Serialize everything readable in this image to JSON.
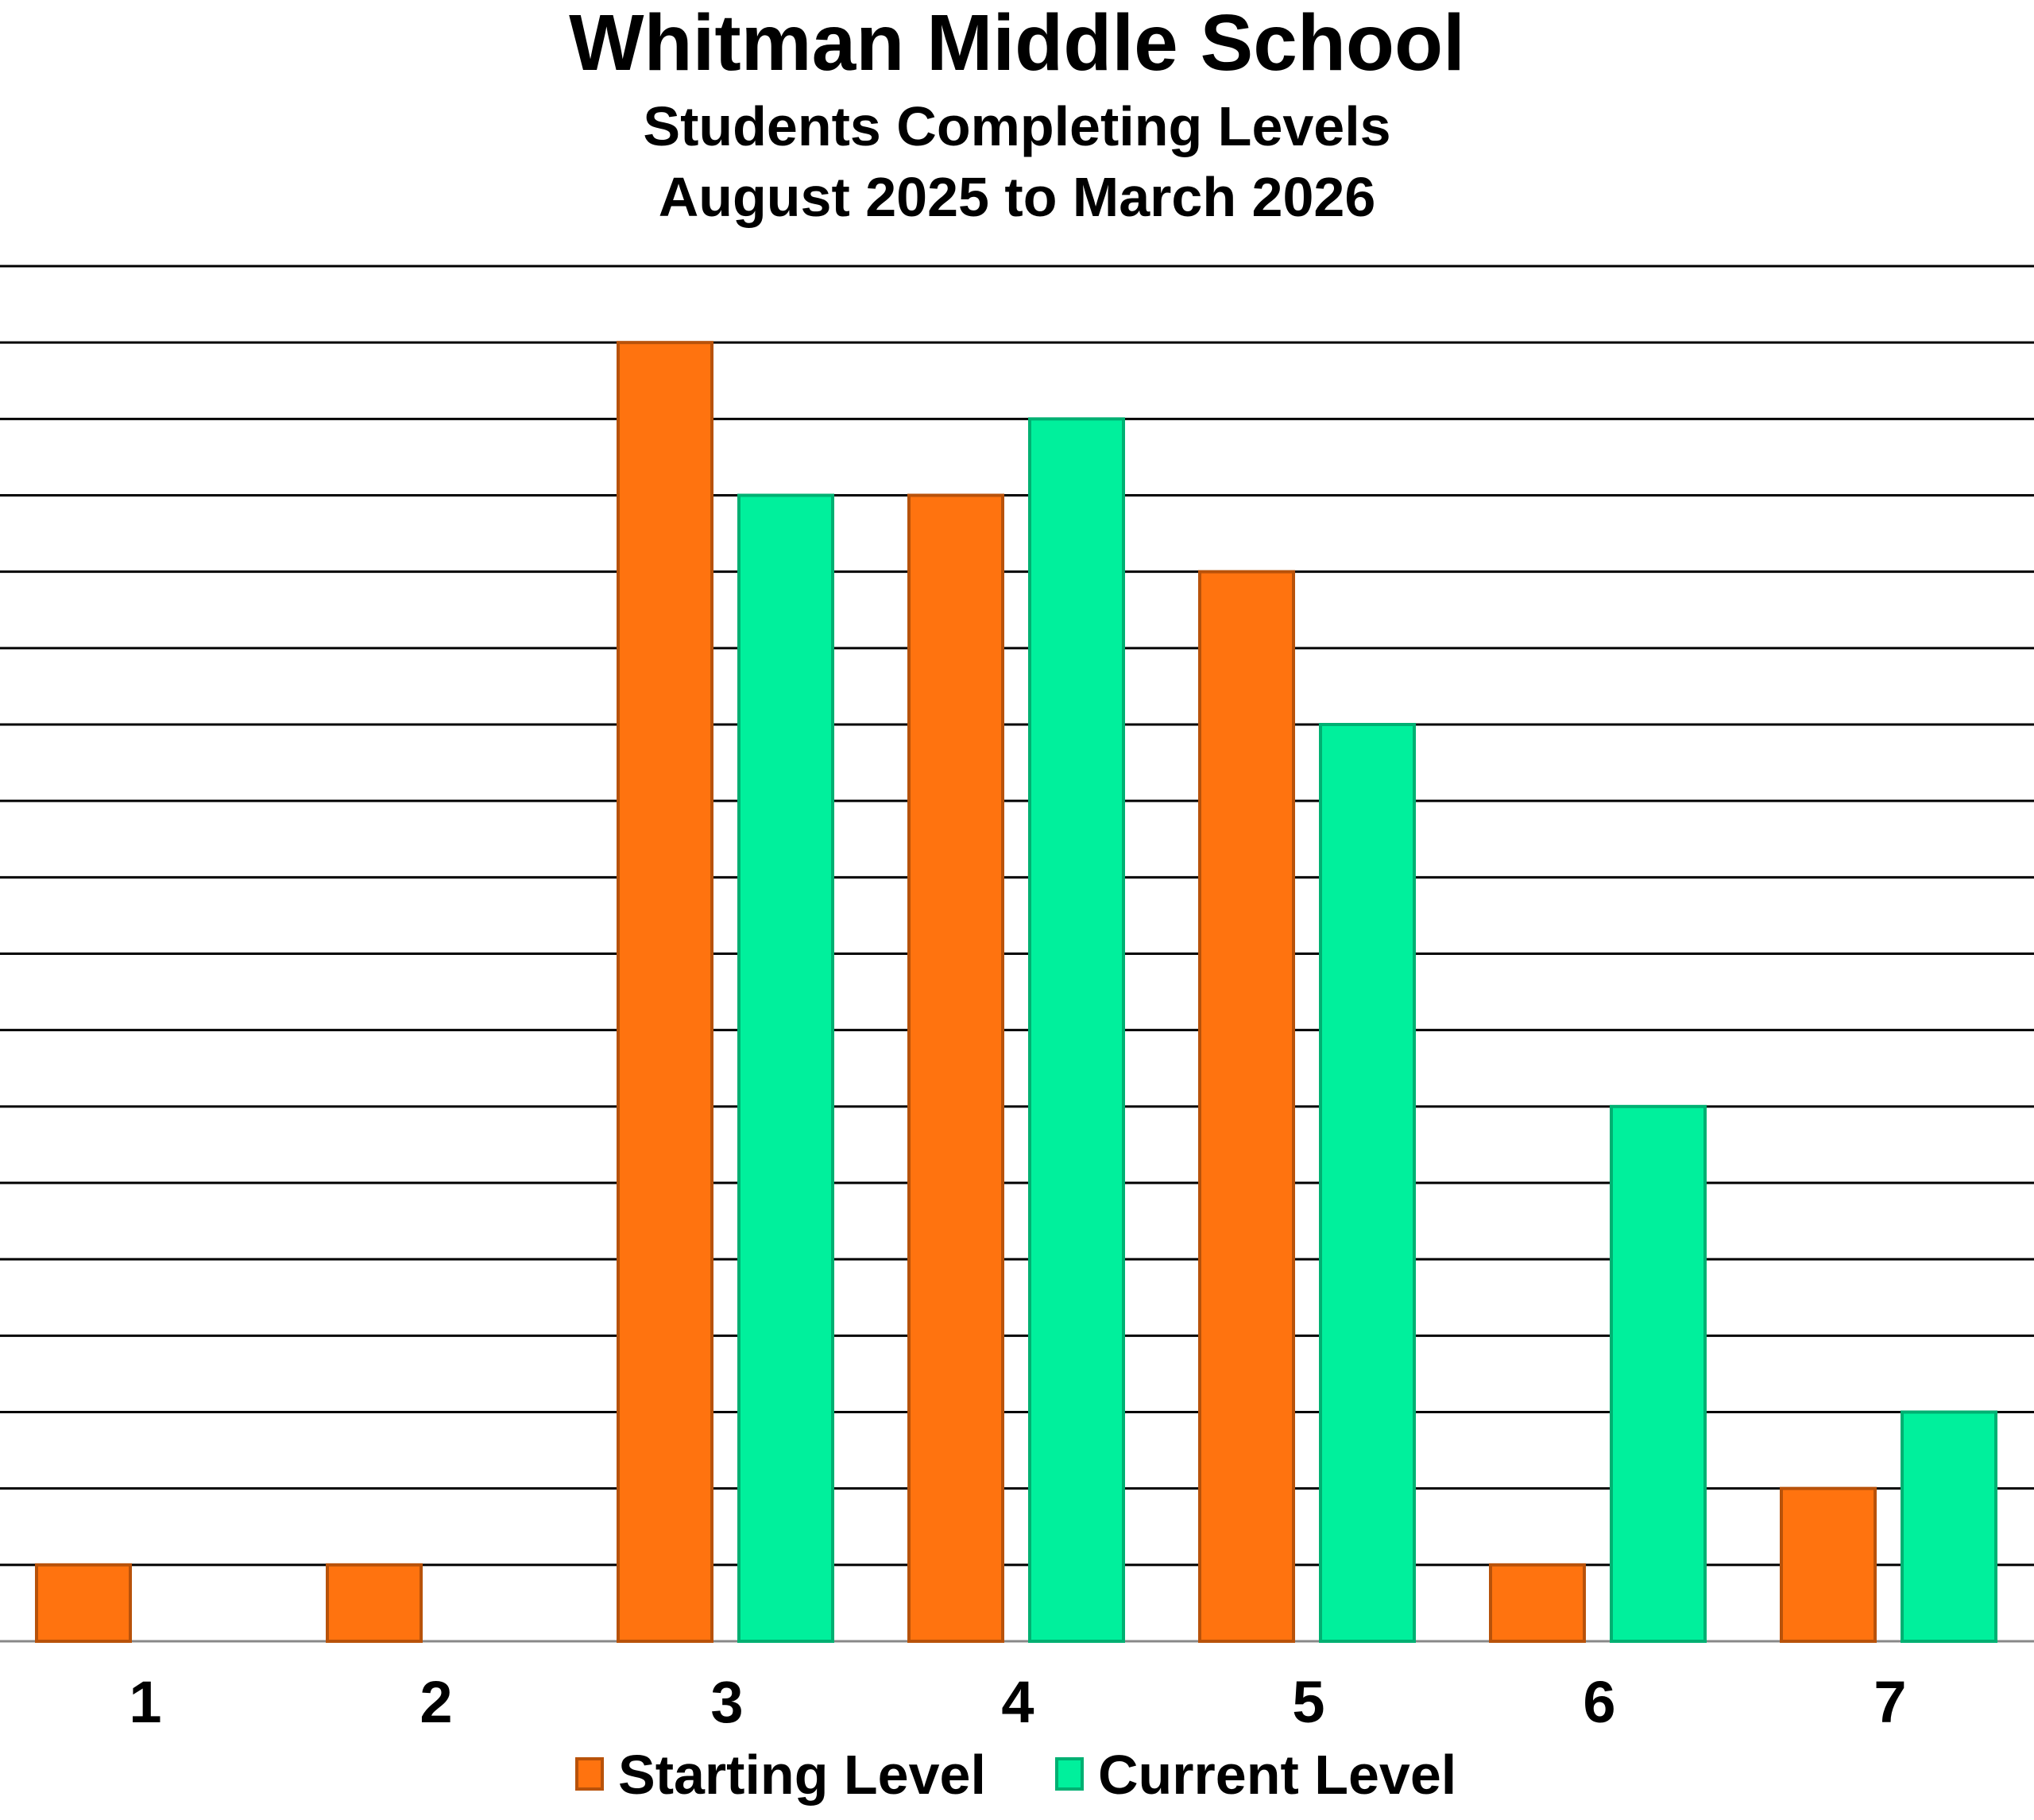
{
  "chart_data": {
    "type": "bar",
    "title": "Whitman Middle School",
    "subtitle": [
      "Students Completing Levels",
      "August 2025 to March 2026"
    ],
    "xlabel": "",
    "ylabel": "",
    "categories": [
      "1",
      "2",
      "3",
      "4",
      "5",
      "6",
      "7"
    ],
    "series": [
      {
        "name": "Starting Level",
        "values": [
          1,
          1,
          17,
          15,
          14,
          1,
          2
        ],
        "color": "#FF730F"
      },
      {
        "name": "Current Level",
        "values": [
          0,
          0,
          15,
          16,
          12,
          7,
          3
        ],
        "color": "#00F09C"
      }
    ],
    "ylim": [
      0,
      18
    ],
    "grid": true,
    "y_tick_labels_shown": false,
    "legend": "bottom"
  }
}
